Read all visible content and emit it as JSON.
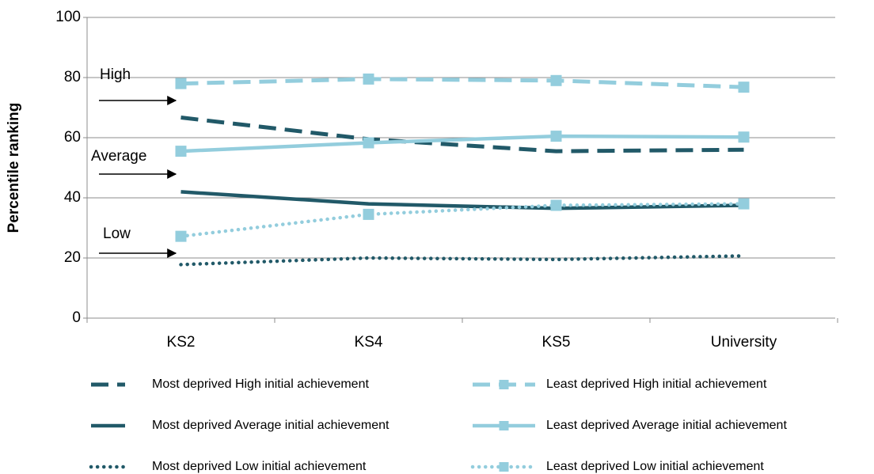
{
  "chart_data": {
    "type": "line",
    "y_label": "Percentile ranking",
    "categories": [
      "KS2",
      "KS4",
      "KS5",
      "University"
    ],
    "ylim": [
      0,
      100
    ],
    "yticks": [
      0,
      20,
      40,
      60,
      80,
      100
    ],
    "grid": true,
    "annotations": [
      "High",
      "Average",
      "Low"
    ],
    "series": [
      {
        "name": "Most deprived High initial achievement",
        "color": "#215968",
        "style": "dashed",
        "marker": "none",
        "values": [
          66.7,
          59.5,
          55.5,
          56
        ]
      },
      {
        "name": "Least deprived High initial achievement",
        "color": "#93cddd",
        "style": "dashed",
        "marker": "square",
        "values": [
          78,
          79.5,
          79,
          76.8
        ]
      },
      {
        "name": "Most deprived Average initial achievement",
        "color": "#215968",
        "style": "solid",
        "marker": "none",
        "values": [
          42,
          38,
          36.5,
          37.5
        ]
      },
      {
        "name": "Least deprived Average initial achievement",
        "color": "#93cddd",
        "style": "solid",
        "marker": "square",
        "values": [
          55.5,
          58.3,
          60.5,
          60.2
        ]
      },
      {
        "name": "Most deprived Low initial achievement",
        "color": "#215968",
        "style": "dotted",
        "marker": "none",
        "values": [
          17.8,
          20,
          19.5,
          20.7
        ]
      },
      {
        "name": "Least deprived Low initial achievement",
        "color": "#93cddd",
        "style": "dotted",
        "marker": "square",
        "values": [
          27.2,
          34.5,
          37.5,
          38
        ]
      }
    ]
  }
}
